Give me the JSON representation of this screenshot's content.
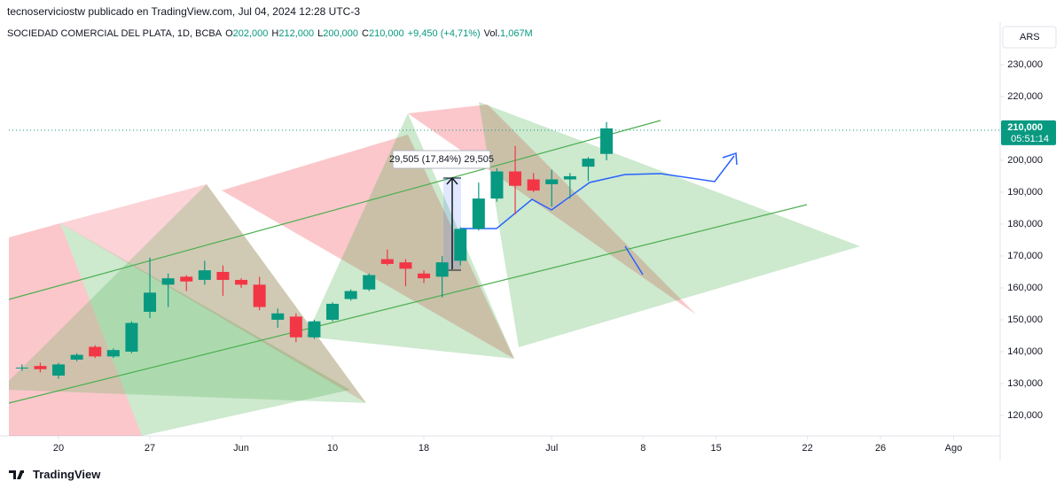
{
  "header": {
    "caption": "tecnoserviciostw publicado en TradingView.com, Jul 04, 2024 12:28 UTC-3"
  },
  "legend": {
    "symbol": "SOCIEDAD COMERCIAL DEL PLATA, 1D, BCBA",
    "items": [
      {
        "label": "O",
        "value": "202,000"
      },
      {
        "label": "H",
        "value": "212,000"
      },
      {
        "label": "L",
        "value": "200,000"
      },
      {
        "label": "C",
        "value": "210,000"
      }
    ],
    "change": "+9,450 (+4,71%)",
    "volume_label": "Vol.",
    "volume": "1,067M"
  },
  "footer": {
    "brand": "TradingView"
  },
  "chart_data": {
    "type": "candlestick",
    "x": [
      -2,
      -1,
      0,
      1,
      2,
      3,
      4,
      5,
      6,
      7,
      8,
      9,
      10,
      11,
      12,
      13,
      14,
      15,
      16,
      17,
      18,
      19,
      20,
      21,
      22,
      23,
      24,
      25,
      26,
      27,
      28,
      29,
      30
    ],
    "open": [
      135000,
      135500,
      132500,
      137500,
      141500,
      138500,
      140000,
      152500,
      161000,
      163500,
      162500,
      165000,
      162500,
      161000,
      150000,
      151000,
      144500,
      150000,
      156500,
      159500,
      169000,
      168000,
      164500,
      163500,
      168500,
      178500,
      188000,
      196500,
      194000,
      192500,
      194000,
      198000,
      202000
    ],
    "high": [
      136000,
      136500,
      136500,
      139500,
      142000,
      141000,
      149500,
      169500,
      164500,
      164000,
      168500,
      167000,
      163000,
      163500,
      153500,
      152000,
      150000,
      155500,
      159500,
      164500,
      172000,
      169000,
      165500,
      170000,
      179000,
      193000,
      197500,
      204500,
      196000,
      197000,
      196000,
      201000,
      212000
    ],
    "low": [
      134000,
      133500,
      131500,
      137000,
      138000,
      138000,
      139500,
      150500,
      154000,
      159000,
      161000,
      157500,
      160000,
      153000,
      147500,
      143000,
      144000,
      149500,
      156000,
      159000,
      167000,
      160500,
      161500,
      157000,
      167000,
      178000,
      187000,
      183000,
      190000,
      185500,
      188000,
      193500,
      200000
    ],
    "close": [
      135000,
      134500,
      136000,
      139000,
      138500,
      140500,
      149000,
      158500,
      163000,
      162000,
      165500,
      162500,
      161000,
      154000,
      152000,
      144500,
      149500,
      155000,
      159000,
      164000,
      167500,
      166000,
      163000,
      168000,
      178500,
      188000,
      196500,
      192000,
      190500,
      194000,
      195000,
      200500,
      210000
    ],
    "up_color": "#089981",
    "down_color": "#f23645",
    "xlim": [
      -2.72,
      51.55
    ],
    "xticks": [
      {
        "value": 0,
        "label": "20"
      },
      {
        "value": 5,
        "label": "27"
      },
      {
        "value": 10,
        "label": "Jun"
      },
      {
        "value": 15,
        "label": "10"
      },
      {
        "value": 20,
        "label": "18"
      },
      {
        "value": 27,
        "label": "Jul"
      },
      {
        "value": 32,
        "label": "8"
      },
      {
        "value": 36,
        "label": "15"
      },
      {
        "value": 41,
        "label": "22"
      },
      {
        "value": 45,
        "label": "26"
      },
      {
        "value": 49,
        "label": "Ago"
      }
    ],
    "ylim": [
      113600,
      234700
    ],
    "yticks": [
      {
        "value": 120000,
        "label": "120,000"
      },
      {
        "value": 130000,
        "label": "130,000"
      },
      {
        "value": 140000,
        "label": "140,000"
      },
      {
        "value": 150000,
        "label": "150,000"
      },
      {
        "value": 160000,
        "label": "160,000"
      },
      {
        "value": 170000,
        "label": "170,000"
      },
      {
        "value": 180000,
        "label": "180,000"
      },
      {
        "value": 190000,
        "label": "190,000"
      },
      {
        "value": 200000,
        "label": "200,000"
      },
      {
        "value": 210000,
        "label": "210,000"
      },
      {
        "value": 220000,
        "label": "220,000"
      },
      {
        "value": 230000,
        "label": "230,000"
      }
    ],
    "last_price": {
      "value": 210000,
      "label": "210,000"
    },
    "countdown": "05:51:14",
    "currency": "ARS",
    "measure_label": "29,505 (17,84%) 29,505"
  }
}
